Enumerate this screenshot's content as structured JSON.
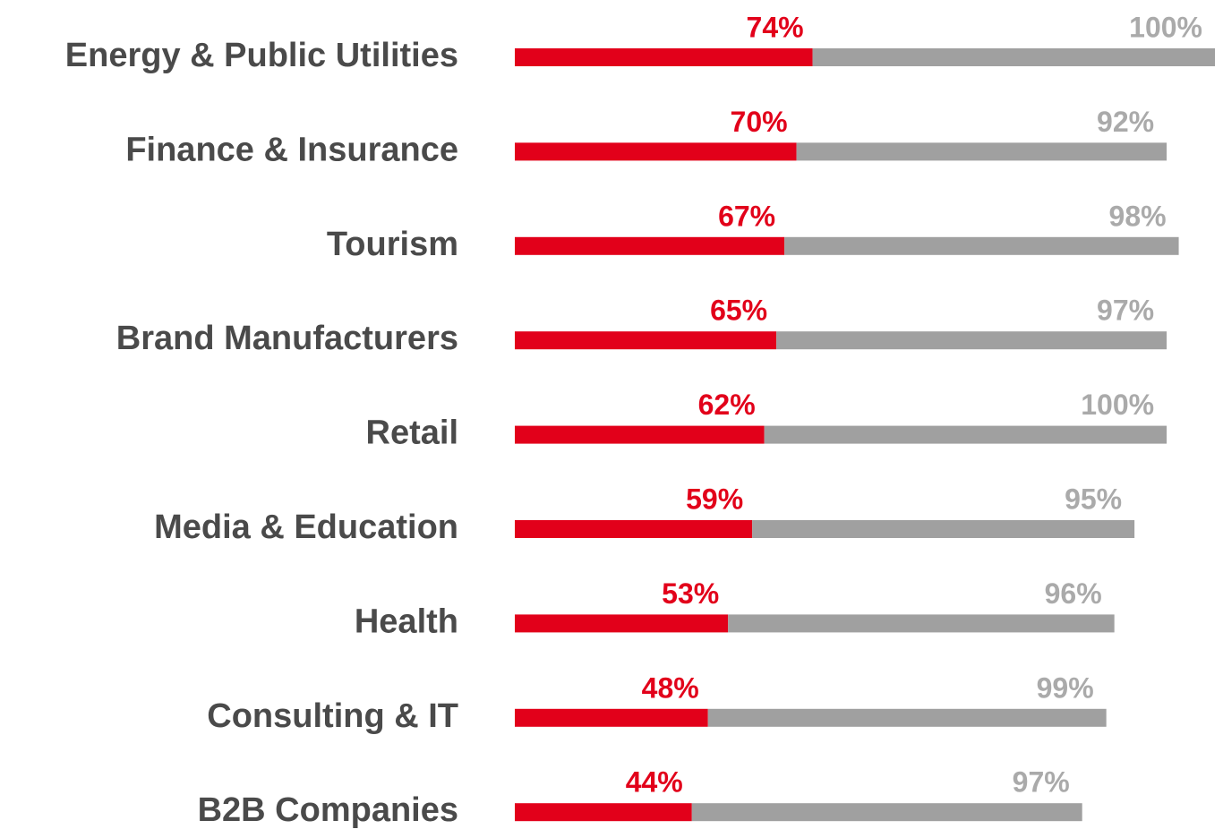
{
  "chart_data": {
    "type": "stacked-bar-horizontal",
    "categories": [
      "Energy & Public Utilities",
      "Finance & Insurance",
      "Tourism",
      "Brand Manufacturers",
      "Retail",
      "Media & Education",
      "Health",
      "Consulting & IT",
      "B2B Companies"
    ],
    "series": [
      {
        "color": "#e2001a",
        "values": [
          74,
          70,
          67,
          65,
          62,
          59,
          53,
          48,
          44
        ],
        "value_labels": [
          "74%",
          "70%",
          "67%",
          "65%",
          "62%",
          "59%",
          "53%",
          "48%",
          "44%"
        ]
      },
      {
        "color": "#a0a0a0",
        "values": [
          100,
          92,
          98,
          97,
          100,
          95,
          96,
          99,
          97
        ],
        "value_labels": [
          "100%",
          "92%",
          "98%",
          "97%",
          "100%",
          "95%",
          "96%",
          "99%",
          "97%"
        ]
      }
    ],
    "xlim": [
      0,
      176
    ]
  }
}
